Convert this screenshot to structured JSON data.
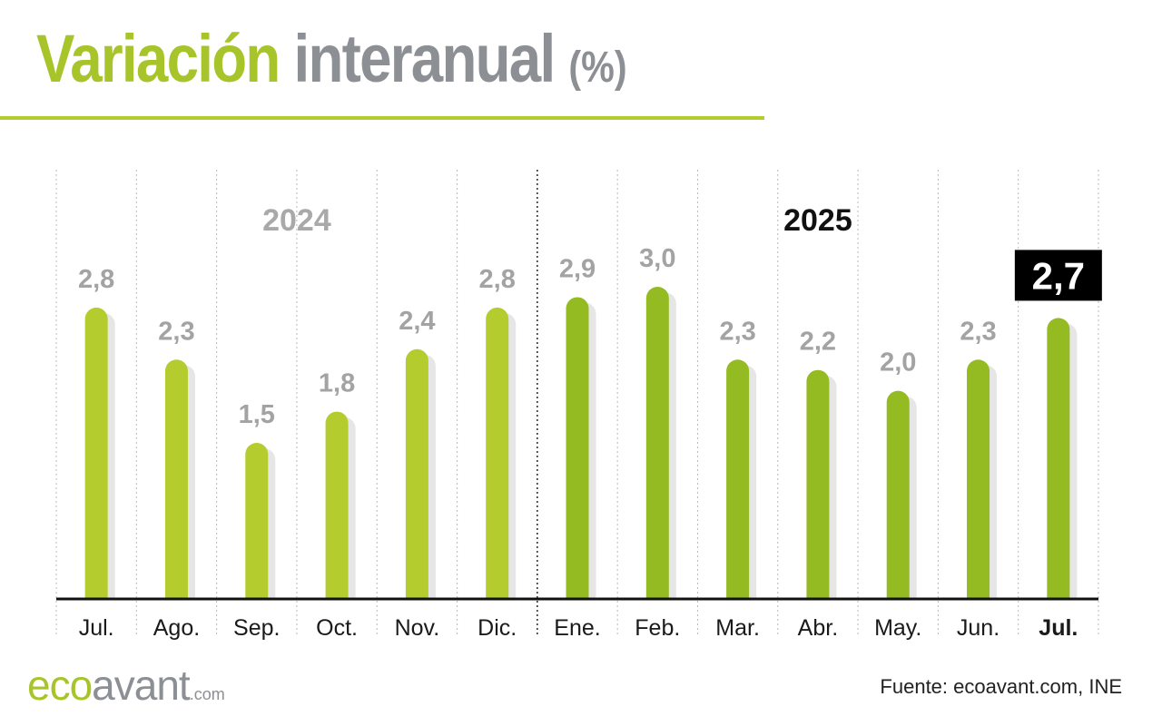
{
  "header": {
    "title_part1": "Variación",
    "title_part2": "interanual",
    "title_part3": "(%)"
  },
  "colors": {
    "bar_2024": "#b5cc2e",
    "bar_2025": "#94bb22",
    "bar_shadow": "#e6e6e6",
    "label_gray": "#a3a3a3",
    "highlight_bg": "#000000",
    "highlight_text": "#ffffff",
    "title_green": "#a7c42a",
    "title_gray": "#8c8f93"
  },
  "chart_data": {
    "type": "bar",
    "categories": [
      "Jul.",
      "Ago.",
      "Sep.",
      "Oct.",
      "Nov.",
      "Dic.",
      "Ene.",
      "Feb.",
      "Mar.",
      "Abr.",
      "May.",
      "Jun.",
      "Jul."
    ],
    "values": [
      2.8,
      2.3,
      1.5,
      1.8,
      2.4,
      2.8,
      2.9,
      3.0,
      2.3,
      2.2,
      2.0,
      2.3,
      2.7
    ],
    "value_labels": [
      "2,8",
      "2,3",
      "1,5",
      "1,8",
      "2,4",
      "2,8",
      "2,9",
      "3,0",
      "2,3",
      "2,2",
      "2,0",
      "2,3",
      "2,7"
    ],
    "year_of_bar": [
      "2024",
      "2024",
      "2024",
      "2024",
      "2024",
      "2024",
      "2025",
      "2025",
      "2025",
      "2025",
      "2025",
      "2025",
      "2025"
    ],
    "year_labels": [
      {
        "text": "2024",
        "style": "gray"
      },
      {
        "text": "2025",
        "style": "black"
      }
    ],
    "highlight_index": 12,
    "ylim": [
      0,
      3.0
    ],
    "grid": "vertical dotted separators",
    "title": "Variación interanual (%)",
    "xlabel": "",
    "ylabel": ""
  },
  "footer": {
    "logo_eco": "eco",
    "logo_avant": "avant",
    "logo_com": ".com",
    "source": "Fuente: ecoavant.com, INE"
  }
}
